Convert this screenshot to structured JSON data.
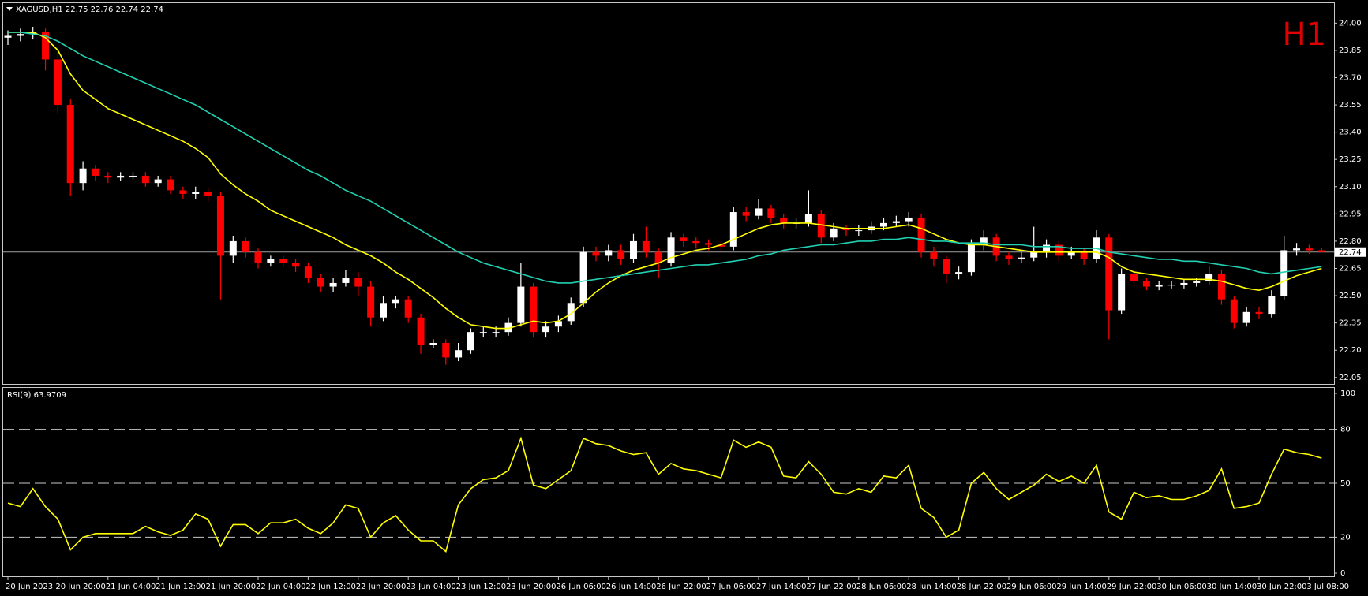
{
  "chart_data": [
    {
      "type": "candlestick",
      "title": "XAGUSD,H1  22.75 22.76 22.74 22.74",
      "annotation": "H1",
      "categories": [
        "20 Jun 2023",
        null,
        null,
        null,
        "20 Jun 20:00",
        null,
        null,
        null,
        "21 Jun 04:00",
        null,
        null,
        null,
        "21 Jun 12:00",
        null,
        null,
        null,
        "21 Jun 20:00",
        null,
        null,
        null,
        "22 Jun 04:00",
        null,
        null,
        null,
        "22 Jun 12:00",
        null,
        null,
        null,
        "22 Jun 20:00",
        null,
        null,
        null,
        "23 Jun 04:00",
        null,
        null,
        null,
        "23 Jun 12:00",
        null,
        null,
        null,
        "23 Jun 20:00",
        null,
        null,
        null,
        "26 Jun 06:00",
        null,
        null,
        null,
        "26 Jun 14:00",
        null,
        null,
        null,
        "26 Jun 22:00",
        null,
        null,
        null,
        "27 Jun 06:00",
        null,
        null,
        null,
        "27 Jun 14:00",
        null,
        null,
        null,
        "27 Jun 22:00",
        null,
        null,
        null,
        "28 Jun 06:00",
        null,
        null,
        null,
        "28 Jun 14:00",
        null,
        null,
        null,
        "28 Jun 22:00",
        null,
        null,
        null,
        "29 Jun 06:00",
        null,
        null,
        null,
        "29 Jun 14:00",
        null,
        null,
        null,
        "29 Jun 22:00",
        null,
        null,
        null,
        "30 Jun 06:00",
        null,
        null,
        null,
        "30 Jun 14:00",
        null,
        null,
        null,
        "30 Jun 22:00",
        null,
        null,
        null,
        "3 Jul 08:00",
        null
      ],
      "open": [
        23.92,
        23.93,
        23.94,
        23.95,
        23.8,
        23.55,
        23.12,
        23.2,
        23.16,
        23.15,
        23.16,
        23.16,
        23.12,
        23.14,
        23.08,
        23.06,
        23.07,
        23.05,
        22.72,
        22.8,
        22.74,
        22.68,
        22.7,
        22.68,
        22.66,
        22.6,
        22.55,
        22.57,
        22.6,
        22.55,
        22.38,
        22.46,
        22.48,
        22.38,
        22.23,
        22.24,
        22.16,
        22.2,
        22.3,
        22.3,
        22.3,
        22.35,
        22.55,
        22.3,
        22.33,
        22.36,
        22.46,
        22.74,
        22.72,
        22.75,
        22.7,
        22.8,
        22.74,
        22.68,
        22.82,
        22.8,
        22.79,
        22.78,
        22.77,
        22.96,
        22.94,
        22.98,
        22.93,
        22.9,
        22.9,
        22.95,
        22.82,
        22.87,
        22.86,
        22.86,
        22.88,
        22.9,
        22.91,
        22.93,
        22.74,
        22.7,
        22.62,
        22.63,
        22.78,
        22.82,
        22.72,
        22.7,
        22.71,
        22.74,
        22.78,
        22.72,
        22.74,
        22.7,
        22.82,
        22.42,
        22.62,
        22.58,
        22.55,
        22.56,
        22.56,
        22.57,
        22.58,
        22.62,
        22.48,
        22.35,
        22.41,
        22.4,
        22.5,
        22.75,
        22.76,
        22.75
      ],
      "high": [
        23.96,
        23.97,
        23.98,
        23.97,
        23.87,
        23.58,
        23.24,
        23.22,
        23.18,
        23.18,
        23.18,
        23.18,
        23.16,
        23.16,
        23.1,
        23.1,
        23.09,
        23.07,
        22.83,
        22.82,
        22.76,
        22.72,
        22.72,
        22.7,
        22.68,
        22.62,
        22.6,
        22.64,
        22.63,
        22.58,
        22.5,
        22.5,
        22.5,
        22.4,
        22.26,
        22.26,
        22.24,
        22.32,
        22.33,
        22.33,
        22.38,
        22.68,
        22.57,
        22.36,
        22.39,
        22.49,
        22.77,
        22.77,
        22.78,
        22.78,
        22.84,
        22.88,
        22.76,
        22.85,
        22.84,
        22.82,
        22.81,
        22.8,
        22.99,
        22.99,
        23.03,
        23.0,
        22.95,
        22.93,
        23.08,
        22.97,
        22.9,
        22.89,
        22.89,
        22.91,
        22.93,
        22.94,
        22.96,
        22.95,
        22.77,
        22.72,
        22.66,
        22.81,
        22.86,
        22.84,
        22.74,
        22.74,
        22.88,
        22.81,
        22.8,
        22.77,
        22.76,
        22.86,
        22.84,
        22.65,
        22.64,
        22.6,
        22.58,
        22.58,
        22.59,
        22.6,
        22.66,
        22.64,
        22.5,
        22.44,
        22.44,
        22.53,
        22.83,
        22.79,
        22.78,
        22.76
      ],
      "low": [
        23.88,
        23.9,
        23.91,
        23.74,
        23.5,
        23.05,
        23.08,
        23.13,
        23.12,
        23.13,
        23.14,
        23.1,
        23.1,
        23.06,
        23.03,
        23.03,
        23.02,
        22.48,
        22.68,
        22.71,
        22.65,
        22.66,
        22.66,
        22.63,
        22.57,
        22.52,
        22.52,
        22.55,
        22.5,
        22.33,
        22.36,
        22.43,
        22.35,
        22.18,
        22.21,
        22.12,
        22.14,
        22.18,
        22.27,
        22.27,
        22.28,
        22.33,
        22.27,
        22.27,
        22.3,
        22.34,
        22.44,
        22.69,
        22.69,
        22.67,
        22.68,
        22.71,
        22.6,
        22.66,
        22.77,
        22.76,
        22.75,
        22.74,
        22.75,
        22.91,
        22.92,
        22.9,
        22.87,
        22.87,
        22.88,
        22.79,
        22.8,
        22.83,
        22.83,
        22.84,
        22.86,
        22.88,
        22.88,
        22.71,
        22.66,
        22.57,
        22.59,
        22.61,
        22.75,
        22.69,
        22.67,
        22.68,
        22.69,
        22.71,
        22.69,
        22.7,
        22.67,
        22.68,
        22.26,
        22.4,
        22.55,
        22.53,
        22.53,
        22.54,
        22.54,
        22.55,
        22.56,
        22.45,
        22.32,
        22.33,
        22.37,
        22.38,
        22.48,
        22.72,
        22.73,
        22.74
      ],
      "close": [
        23.93,
        23.94,
        23.95,
        23.8,
        23.55,
        23.12,
        23.2,
        23.16,
        23.15,
        23.16,
        23.16,
        23.12,
        23.14,
        23.08,
        23.06,
        23.07,
        23.05,
        22.72,
        22.8,
        22.74,
        22.68,
        22.7,
        22.68,
        22.66,
        22.6,
        22.55,
        22.57,
        22.6,
        22.55,
        22.38,
        22.46,
        22.48,
        22.38,
        22.23,
        22.24,
        22.16,
        22.2,
        22.3,
        22.3,
        22.3,
        22.35,
        22.55,
        22.3,
        22.33,
        22.36,
        22.46,
        22.74,
        22.72,
        22.75,
        22.7,
        22.8,
        22.74,
        22.68,
        22.82,
        22.8,
        22.79,
        22.78,
        22.77,
        22.96,
        22.94,
        22.98,
        22.93,
        22.9,
        22.9,
        22.95,
        22.82,
        22.87,
        22.86,
        22.86,
        22.88,
        22.9,
        22.91,
        22.93,
        22.74,
        22.7,
        22.62,
        22.63,
        22.78,
        22.82,
        22.72,
        22.7,
        22.71,
        22.74,
        22.78,
        22.72,
        22.74,
        22.7,
        22.82,
        22.42,
        22.62,
        22.58,
        22.55,
        22.56,
        22.56,
        22.57,
        22.58,
        22.62,
        22.48,
        22.35,
        22.41,
        22.4,
        22.5,
        22.75,
        22.76,
        22.75,
        22.74
      ],
      "up_color": "#ffffff",
      "down_color": "#ff0000",
      "series": [
        {
          "color": "#ffff00",
          "values": [
            23.95,
            23.95,
            23.95,
            23.92,
            23.85,
            23.72,
            23.63,
            23.58,
            23.53,
            23.5,
            23.47,
            23.44,
            23.41,
            23.38,
            23.35,
            23.31,
            23.26,
            23.17,
            23.11,
            23.06,
            23.02,
            22.97,
            22.94,
            22.91,
            22.88,
            22.85,
            22.82,
            22.78,
            22.75,
            22.72,
            22.68,
            22.63,
            22.59,
            22.54,
            22.49,
            22.43,
            22.38,
            22.34,
            22.33,
            22.32,
            22.32,
            22.34,
            22.36,
            22.35,
            22.36,
            22.4,
            22.46,
            22.52,
            22.57,
            22.61,
            22.64,
            22.66,
            22.68,
            22.71,
            22.73,
            22.75,
            22.76,
            22.78,
            22.81,
            22.84,
            22.87,
            22.89,
            22.9,
            22.9,
            22.9,
            22.89,
            22.88,
            22.87,
            22.87,
            22.87,
            22.87,
            22.88,
            22.89,
            22.87,
            22.84,
            22.81,
            22.79,
            22.78,
            22.78,
            22.77,
            22.76,
            22.75,
            22.74,
            22.74,
            22.74,
            22.74,
            22.74,
            22.74,
            22.71,
            22.66,
            22.63,
            22.62,
            22.61,
            22.6,
            22.59,
            22.59,
            22.59,
            22.58,
            22.56,
            22.54,
            22.53,
            22.55,
            22.58,
            22.61,
            22.63,
            22.65
          ]
        },
        {
          "color": "#20d0b0",
          "values": [
            23.95,
            23.95,
            23.94,
            23.93,
            23.9,
            23.86,
            23.82,
            23.79,
            23.76,
            23.73,
            23.7,
            23.67,
            23.64,
            23.61,
            23.58,
            23.55,
            23.51,
            23.47,
            23.43,
            23.39,
            23.35,
            23.31,
            23.27,
            23.23,
            23.19,
            23.16,
            23.12,
            23.08,
            23.05,
            23.02,
            22.98,
            22.94,
            22.9,
            22.86,
            22.82,
            22.78,
            22.74,
            22.71,
            22.68,
            22.66,
            22.64,
            22.62,
            22.6,
            22.58,
            22.57,
            22.57,
            22.58,
            22.59,
            22.6,
            22.61,
            22.62,
            22.63,
            22.64,
            22.65,
            22.66,
            22.67,
            22.67,
            22.68,
            22.69,
            22.7,
            22.72,
            22.73,
            22.75,
            22.76,
            22.77,
            22.78,
            22.78,
            22.79,
            22.8,
            22.8,
            22.81,
            22.81,
            22.82,
            22.81,
            22.8,
            22.8,
            22.79,
            22.79,
            22.79,
            22.78,
            22.78,
            22.78,
            22.77,
            22.77,
            22.77,
            22.76,
            22.76,
            22.76,
            22.74,
            22.73,
            22.72,
            22.71,
            22.7,
            22.7,
            22.69,
            22.69,
            22.68,
            22.67,
            22.66,
            22.65,
            22.63,
            22.62,
            22.63,
            22.64,
            22.65,
            22.66
          ]
        }
      ],
      "last_price": 22.74,
      "last_price_color": "#a0a0a0",
      "ylim": [
        22.01,
        24.11
      ],
      "yticks": [
        {
          "value": 24.0,
          "label": "24.00"
        },
        23.85,
        {
          "value": 23.7,
          "label": "23.70"
        },
        23.55,
        {
          "value": 23.4,
          "label": "23.40"
        },
        23.25,
        {
          "value": 23.1,
          "label": "23.10"
        },
        22.95,
        {
          "value": 22.8,
          "label": "22.80"
        },
        22.65,
        {
          "value": 22.5,
          "label": "22.50"
        },
        22.35,
        {
          "value": 22.2,
          "label": "22.20"
        },
        22.05
      ]
    },
    {
      "type": "line",
      "title": "RSI(9) 63.9709",
      "color": "#ffff00",
      "values": [
        39,
        37,
        47,
        37,
        30,
        13,
        20,
        22,
        22,
        22,
        22,
        26,
        23,
        21,
        24,
        33,
        30,
        15,
        27,
        27,
        22,
        28,
        28,
        30,
        25,
        22,
        28,
        38,
        36,
        20,
        28,
        32,
        24,
        18,
        18,
        12,
        38,
        47,
        52,
        53,
        57,
        75,
        49,
        47,
        52,
        57,
        75,
        72,
        71,
        68,
        66,
        67,
        55,
        61,
        58,
        57,
        55,
        53,
        74,
        70,
        73,
        70,
        54,
        53,
        62,
        55,
        45,
        44,
        47,
        45,
        54,
        53,
        60,
        36,
        31,
        20,
        24,
        50,
        56,
        47,
        41,
        45,
        49,
        55,
        51,
        54,
        50,
        60,
        34,
        30,
        45,
        42,
        43,
        41,
        41,
        43,
        46,
        58,
        36,
        37,
        39,
        55,
        69,
        67,
        66,
        64
      ],
      "ylim": [
        0,
        100
      ],
      "yticks": [
        0,
        20,
        50,
        80,
        100
      ],
      "levels": [
        20,
        50,
        80
      ]
    }
  ]
}
